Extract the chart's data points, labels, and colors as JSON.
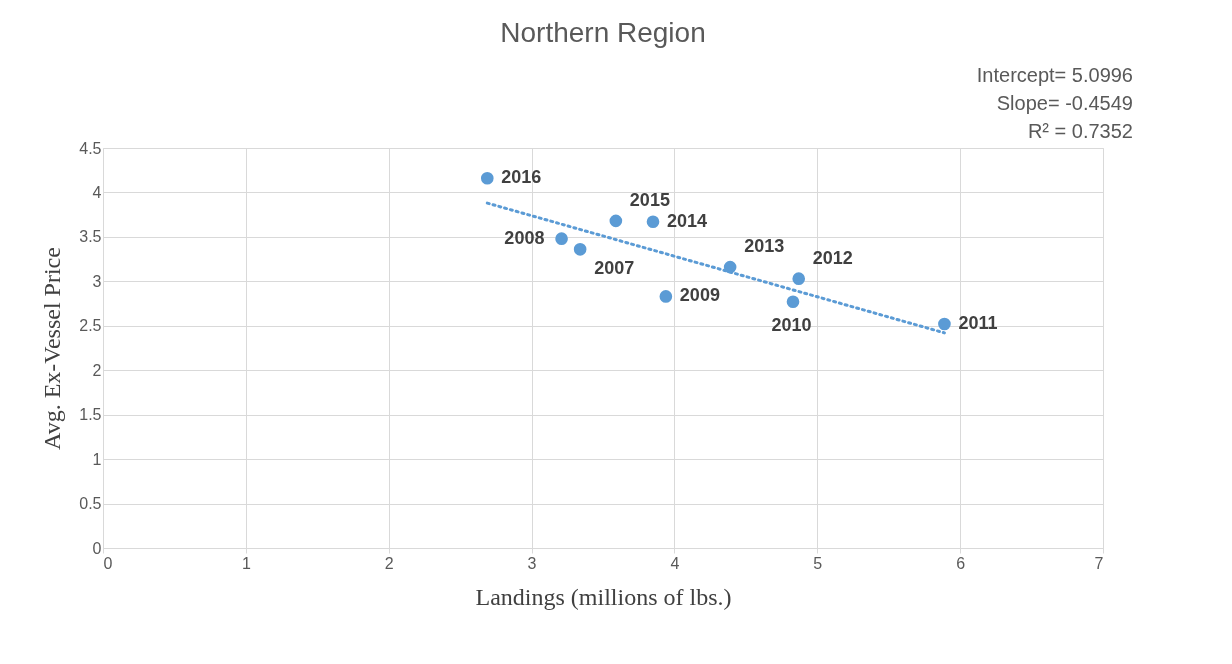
{
  "chart_data": {
    "type": "scatter",
    "title": "Northern Region",
    "xlabel": "Landings (millions of lbs.)",
    "ylabel": "Avg. Ex-Vessel Price",
    "xlim": [
      0,
      7
    ],
    "xticks": [
      0,
      1,
      2,
      3,
      4,
      5,
      6,
      7
    ],
    "ylim": [
      0,
      4.5
    ],
    "yticks": [
      0,
      0.5,
      1,
      1.5,
      2,
      2.5,
      3,
      3.5,
      4,
      4.5
    ],
    "grid": true,
    "series": [
      {
        "marker": "circle",
        "color": "#5b9bd5",
        "x": [
          3.34,
          3.21,
          3.94,
          4.83,
          5.89,
          4.87,
          4.39,
          3.85,
          3.59,
          2.69
        ],
        "values": [
          3.36,
          3.48,
          2.83,
          2.77,
          2.52,
          3.03,
          3.16,
          3.67,
          3.68,
          4.16
        ]
      },
      {
        "type": "line",
        "color": "#5b9bd5",
        "line_style": "dotted",
        "x": [
          2.69,
          5.89
        ],
        "values": [
          3.88,
          2.42
        ]
      }
    ],
    "annotations": [
      {
        "text": "2007",
        "x": 3.34,
        "y": 3.36
      },
      {
        "text": "2008",
        "x": 3.21,
        "y": 3.48
      },
      {
        "text": "2009",
        "x": 3.94,
        "y": 2.83
      },
      {
        "text": "2010",
        "x": 4.83,
        "y": 2.77
      },
      {
        "text": "2011",
        "x": 5.89,
        "y": 2.52
      },
      {
        "text": "2012",
        "x": 4.87,
        "y": 3.03
      },
      {
        "text": "2013",
        "x": 4.39,
        "y": 3.16
      },
      {
        "text": "2014",
        "x": 3.85,
        "y": 3.67
      },
      {
        "text": "2015",
        "x": 3.59,
        "y": 3.68
      },
      {
        "text": "2016",
        "x": 2.69,
        "y": 4.16
      },
      "Intercept= 5.0996",
      "Slope= -0.4549",
      "R² = 0.7352"
    ]
  }
}
